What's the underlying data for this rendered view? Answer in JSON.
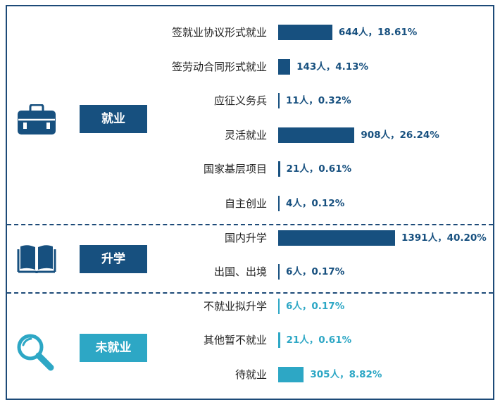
{
  "colors": {
    "dark": "#17507f",
    "light": "#2da7c5",
    "frame": "#1d4a78",
    "text": "#222222"
  },
  "groups": [
    {
      "label": "就业",
      "icon": "briefcase-icon",
      "color": "#17507f"
    },
    {
      "label": "升学",
      "icon": "book-icon",
      "color": "#17507f"
    },
    {
      "label": "未就业",
      "icon": "magnifier-icon",
      "color": "#2da7c5"
    }
  ],
  "chart_data": {
    "type": "bar",
    "orientation": "horizontal",
    "categories": [
      "签就业协议形式就业",
      "签劳动合同形式就业",
      "应征义务兵",
      "灵活就业",
      "国家基层项目",
      "自主创业",
      "国内升学",
      "出国、出境",
      "不就业拟升学",
      "其他暂不就业",
      "待就业"
    ],
    "values": [
      644,
      143,
      11,
      908,
      21,
      4,
      1391,
      6,
      6,
      21,
      305
    ],
    "group_index": [
      0,
      0,
      0,
      0,
      0,
      0,
      1,
      1,
      2,
      2,
      2
    ],
    "value_labels": [
      "644人，18.61%",
      "143人，4.13%",
      "11人，0.32%",
      "908人，26.24%",
      "21人，0.61%",
      "4人，0.12%",
      "1391人，40.20%",
      "6人，0.17%",
      "6人，0.17%",
      "21人，0.61%",
      "305人，8.82%"
    ],
    "xlim": [
      0,
      1391
    ],
    "grid": false,
    "legend": "none"
  }
}
